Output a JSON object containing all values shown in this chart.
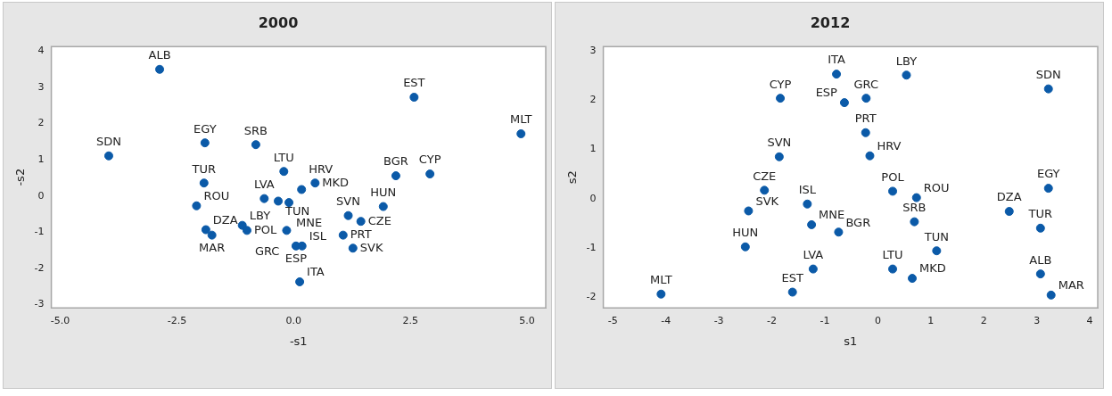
{
  "chart_data": [
    {
      "type": "scatter",
      "title": "2000",
      "xlabel": "-s1",
      "ylabel": "-s2",
      "color": "#0b5aa8",
      "marker": "circle",
      "x": [
        -2.87,
        -3.96,
        -1.9,
        -0.81,
        -1.92,
        -2.08,
        -1.88,
        -1.75,
        -1.1,
        -1.0,
        -0.63,
        -0.33,
        -0.1,
        -0.21,
        0.17,
        0.46,
        -0.15,
        0.05,
        0.13,
        2.58,
        4.87,
        2.19,
        2.92,
        1.92,
        1.17,
        1.44,
        1.06,
        1.27,
        0.18
      ],
      "values": [
        3.5,
        1.11,
        1.47,
        1.42,
        0.36,
        -0.27,
        -0.93,
        -1.08,
        -0.81,
        -0.95,
        -0.07,
        -0.14,
        -0.18,
        0.68,
        0.18,
        0.36,
        -0.95,
        -1.38,
        -2.37,
        2.73,
        1.72,
        0.56,
        0.61,
        -0.29,
        -0.54,
        -0.7,
        -1.08,
        -1.44,
        -1.38
      ],
      "annotations": [
        {
          "text": "ALB",
          "x": -2.87,
          "y": 3.5
        },
        {
          "text": "SDN",
          "x": -3.96,
          "y": 1.11
        },
        {
          "text": "EGY",
          "x": -1.9,
          "y": 1.47
        },
        {
          "text": "SRB",
          "x": -0.81,
          "y": 1.42
        },
        {
          "text": "TUR",
          "x": -1.92,
          "y": 0.36
        },
        {
          "text": "ROU",
          "x": -2.08,
          "y": -0.27
        },
        {
          "text": "DZA",
          "x": -1.88,
          "y": -0.93
        },
        {
          "text": "MAR",
          "x": -1.75,
          "y": -1.08
        },
        {
          "text": "LBY",
          "x": -1.1,
          "y": -0.81
        },
        {
          "text": "POL",
          "x": -1.0,
          "y": -0.95
        },
        {
          "text": "LVA",
          "x": -0.63,
          "y": -0.07
        },
        {
          "text": "TUN",
          "x": -0.33,
          "y": -0.14
        },
        {
          "text": "MNE",
          "x": -0.1,
          "y": -0.18
        },
        {
          "text": "LTU",
          "x": -0.21,
          "y": 0.68
        },
        {
          "text": "HRV",
          "x": 0.17,
          "y": 0.18
        },
        {
          "text": "MKD",
          "x": 0.46,
          "y": 0.36
        },
        {
          "text": "GRC",
          "x": -0.15,
          "y": -0.95
        },
        {
          "text": "ESP",
          "x": 0.05,
          "y": -1.38
        },
        {
          "text": "ITA",
          "x": 0.13,
          "y": -2.37
        },
        {
          "text": "EST",
          "x": 2.58,
          "y": 2.73
        },
        {
          "text": "MLT",
          "x": 4.87,
          "y": 1.72
        },
        {
          "text": "BGR",
          "x": 2.19,
          "y": 0.56
        },
        {
          "text": "CYP",
          "x": 2.92,
          "y": 0.61
        },
        {
          "text": "HUN",
          "x": 1.92,
          "y": -0.29
        },
        {
          "text": "SVN",
          "x": 1.17,
          "y": -0.54
        },
        {
          "text": "CZE",
          "x": 1.44,
          "y": -0.7
        },
        {
          "text": "PRT",
          "x": 1.06,
          "y": -1.08
        },
        {
          "text": "SVK",
          "x": 1.27,
          "y": -1.44
        },
        {
          "text": "ISL",
          "x": 0.18,
          "y": -1.38
        }
      ],
      "xlim": [
        -5.19,
        5.4
      ],
      "ylim": [
        -3.09,
        4.13
      ],
      "xticks": [
        {
          "value": -5,
          "label": "-5.0"
        },
        {
          "value": -2.5,
          "label": "-2.5"
        },
        {
          "value": 0,
          "label": "0.0"
        },
        {
          "value": 2.5,
          "label": "2.5"
        },
        {
          "value": 5,
          "label": "5.0"
        }
      ],
      "yticks": [
        -3,
        -2,
        -1,
        0,
        1,
        2,
        3,
        4
      ]
    },
    {
      "type": "scatter",
      "title": "2012",
      "xlabel": "s1",
      "ylabel": "s2",
      "color": "#0b5aa8",
      "marker": "circle",
      "x": [
        -1.84,
        -1.86,
        -2.14,
        -2.44,
        -1.33,
        -1.25,
        -2.5,
        -1.22,
        -1.61,
        -4.09,
        -0.78,
        0.54,
        3.22,
        -0.22,
        -0.63,
        -0.23,
        -0.15,
        0.28,
        0.73,
        0.69,
        -0.74,
        3.22,
        2.48,
        3.07,
        1.11,
        0.28,
        0.65,
        3.07,
        3.27
      ],
      "values": [
        2.04,
        0.85,
        0.17,
        -0.25,
        -0.11,
        -0.53,
        -0.98,
        -1.43,
        -1.9,
        -1.94,
        2.53,
        2.51,
        2.23,
        2.04,
        1.95,
        1.34,
        0.87,
        0.15,
        0.02,
        -0.47,
        -0.68,
        0.21,
        -0.26,
        -0.6,
        -1.06,
        -1.43,
        -1.62,
        -1.53,
        -1.96
      ],
      "annotations": [
        {
          "text": "CYP",
          "x": -1.84,
          "y": 2.04
        },
        {
          "text": "SVN",
          "x": -1.86,
          "y": 0.85
        },
        {
          "text": "CZE",
          "x": -2.14,
          "y": 0.17
        },
        {
          "text": "SVK",
          "x": -2.44,
          "y": -0.25
        },
        {
          "text": "ISL",
          "x": -1.33,
          "y": -0.11
        },
        {
          "text": "MNE",
          "x": -1.25,
          "y": -0.53
        },
        {
          "text": "HUN",
          "x": -2.5,
          "y": -0.98
        },
        {
          "text": "LVA",
          "x": -1.22,
          "y": -1.43
        },
        {
          "text": "EST",
          "x": -1.61,
          "y": -1.9
        },
        {
          "text": "MLT",
          "x": -4.09,
          "y": -1.94
        },
        {
          "text": "ITA",
          "x": -0.78,
          "y": 2.53
        },
        {
          "text": "LBY",
          "x": 0.54,
          "y": 2.51
        },
        {
          "text": "SDN",
          "x": 3.22,
          "y": 2.23
        },
        {
          "text": "GRC",
          "x": -0.22,
          "y": 2.04
        },
        {
          "text": "ESP",
          "x": -0.63,
          "y": 1.95
        },
        {
          "text": "PRT",
          "x": -0.23,
          "y": 1.34
        },
        {
          "text": "HRV",
          "x": -0.15,
          "y": 0.87
        },
        {
          "text": "POL",
          "x": 0.28,
          "y": 0.15
        },
        {
          "text": "ROU",
          "x": 0.73,
          "y": 0.02
        },
        {
          "text": "SRB",
          "x": 0.69,
          "y": -0.47
        },
        {
          "text": "BGR",
          "x": -0.74,
          "y": -0.68
        },
        {
          "text": "EGY",
          "x": 3.22,
          "y": 0.21
        },
        {
          "text": "DZA",
          "x": 2.48,
          "y": -0.26
        },
        {
          "text": "TUR",
          "x": 3.07,
          "y": -0.6
        },
        {
          "text": "TUN",
          "x": 1.11,
          "y": -1.06
        },
        {
          "text": "LTU",
          "x": 0.28,
          "y": -1.43
        },
        {
          "text": "MKD",
          "x": 0.65,
          "y": -1.62
        },
        {
          "text": "ALB",
          "x": 3.07,
          "y": -1.53
        },
        {
          "text": "MAR",
          "x": 3.27,
          "y": -1.96
        }
      ],
      "xlim": [
        -5.18,
        4.15
      ],
      "ylim": [
        -2.22,
        3.09
      ],
      "xticks": [
        -5,
        -4,
        -3,
        -2,
        -1,
        0,
        1,
        2,
        3,
        4
      ],
      "yticks": [
        -2,
        -1,
        0,
        1,
        2,
        3
      ]
    }
  ]
}
